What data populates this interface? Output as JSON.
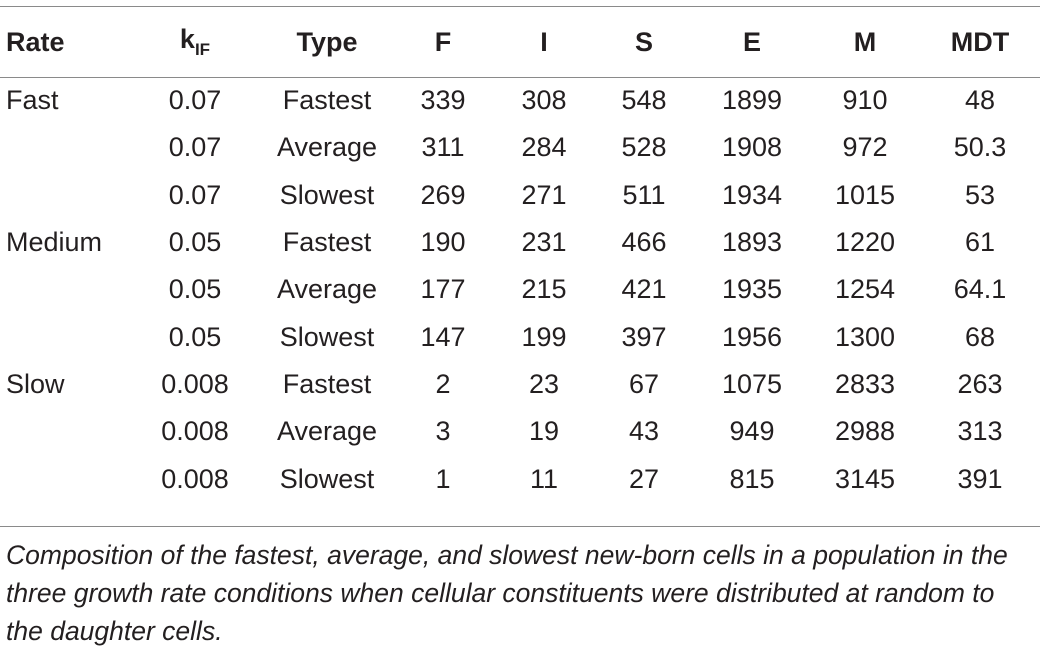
{
  "table": {
    "headers": {
      "rate": "Rate",
      "k_main": "k",
      "k_sub": "IF",
      "type": "Type",
      "f": "F",
      "i": "I",
      "s": "S",
      "e": "E",
      "m": "M",
      "mdt": "MDT"
    },
    "rows": [
      {
        "rate": "Fast",
        "k": "0.07",
        "type": "Fastest",
        "f": "339",
        "i": "308",
        "s": "548",
        "e": "1899",
        "m": "910",
        "mdt": "48"
      },
      {
        "rate": "",
        "k": "0.07",
        "type": "Average",
        "f": "311",
        "i": "284",
        "s": "528",
        "e": "1908",
        "m": "972",
        "mdt": "50.3"
      },
      {
        "rate": "",
        "k": "0.07",
        "type": "Slowest",
        "f": "269",
        "i": "271",
        "s": "511",
        "e": "1934",
        "m": "1015",
        "mdt": "53"
      },
      {
        "rate": "Medium",
        "k": "0.05",
        "type": "Fastest",
        "f": "190",
        "i": "231",
        "s": "466",
        "e": "1893",
        "m": "1220",
        "mdt": "61"
      },
      {
        "rate": "",
        "k": "0.05",
        "type": "Average",
        "f": "177",
        "i": "215",
        "s": "421",
        "e": "1935",
        "m": "1254",
        "mdt": "64.1"
      },
      {
        "rate": "",
        "k": "0.05",
        "type": "Slowest",
        "f": "147",
        "i": "199",
        "s": "397",
        "e": "1956",
        "m": "1300",
        "mdt": "68"
      },
      {
        "rate": "Slow",
        "k": "0.008",
        "type": "Fastest",
        "f": "2",
        "i": "23",
        "s": "67",
        "e": "1075",
        "m": "2833",
        "mdt": "263"
      },
      {
        "rate": "",
        "k": "0.008",
        "type": "Average",
        "f": "3",
        "i": "19",
        "s": "43",
        "e": "949",
        "m": "2988",
        "mdt": "313"
      },
      {
        "rate": "",
        "k": "0.008",
        "type": "Slowest",
        "f": "1",
        "i": "11",
        "s": "27",
        "e": "815",
        "m": "3145",
        "mdt": "391"
      }
    ]
  },
  "caption": "Composition of the fastest, average, and slowest new-born cells in a population in the three growth rate conditions when cellular constituents were distributed at random to the daughter cells."
}
